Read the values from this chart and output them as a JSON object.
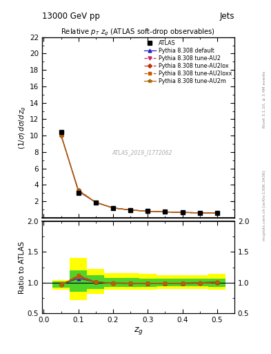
{
  "title_top": "13000 GeV pp",
  "title_right": "Jets",
  "plot_title": "Relative $p_{T}$ $z_g$ (ATLAS soft-drop observables)",
  "ylabel_main": "$(1/\\sigma)\\,d\\sigma/d\\,z_g$",
  "ylabel_ratio": "Ratio to ATLAS",
  "xlabel": "$z_g$",
  "watermark": "ATLAS_2019_I1772062",
  "right_label_top": "Rivet 3.1.10, ≥ 3.4M events",
  "right_label_bot": "mcplots.cern.ch [arXiv:1306.3436]",
  "zg_data": [
    0.05,
    0.1,
    0.15,
    0.2,
    0.25,
    0.3,
    0.35,
    0.4,
    0.45,
    0.5
  ],
  "main_data": [
    10.4,
    3.0,
    1.85,
    1.2,
    0.95,
    0.8,
    0.72,
    0.65,
    0.6,
    0.55
  ],
  "data_err_stat": [
    0.05,
    0.03,
    0.02,
    0.015,
    0.012,
    0.01,
    0.01,
    0.009,
    0.009,
    0.008
  ],
  "band_yellow_lo": [
    0.88,
    0.72,
    0.82,
    0.88,
    0.88,
    0.88,
    0.9,
    0.9,
    0.9,
    0.88
  ],
  "band_yellow_hi": [
    1.04,
    1.4,
    1.22,
    1.16,
    1.16,
    1.14,
    1.12,
    1.12,
    1.12,
    1.14
  ],
  "band_green_lo": [
    0.92,
    0.85,
    0.9,
    0.93,
    0.93,
    0.93,
    0.94,
    0.94,
    0.94,
    0.93
  ],
  "band_green_hi": [
    1.02,
    1.2,
    1.12,
    1.08,
    1.08,
    1.07,
    1.06,
    1.06,
    1.06,
    1.07
  ],
  "series": [
    {
      "label": "Pythia 8.308 default",
      "color": "#2222cc",
      "linestyle": "-",
      "marker": "^",
      "markersize": 3.5,
      "ratio": [
        0.97,
        1.07,
        1.01,
        0.995,
        0.99,
        0.99,
        0.99,
        0.99,
        1.0,
        1.01
      ]
    },
    {
      "label": "Pythia 8.308 tune-AU2",
      "color": "#cc2255",
      "linestyle": "--",
      "marker": "v",
      "markersize": 3.5,
      "ratio": [
        0.97,
        1.1,
        1.01,
        0.99,
        0.99,
        0.99,
        0.99,
        0.985,
        0.99,
        1.0
      ]
    },
    {
      "label": "Pythia 8.308 tune-AU2lox",
      "color": "#bb3311",
      "linestyle": "-.",
      "marker": "D",
      "markersize": 3,
      "ratio": [
        0.96,
        1.115,
        1.01,
        0.99,
        0.99,
        0.985,
        0.985,
        0.985,
        0.99,
        1.0
      ]
    },
    {
      "label": "Pythia 8.308 tune-AU2loxx",
      "color": "#cc5500",
      "linestyle": "--",
      "marker": "s",
      "markersize": 3,
      "ratio": [
        0.96,
        1.125,
        1.01,
        0.99,
        0.985,
        0.985,
        0.985,
        0.985,
        0.99,
        1.005
      ]
    },
    {
      "label": "Pythia 8.308 tune-AU2m",
      "color": "#aa6600",
      "linestyle": "-",
      "marker": "*",
      "markersize": 4,
      "ratio": [
        0.97,
        1.09,
        1.01,
        0.995,
        0.99,
        0.99,
        0.99,
        0.99,
        1.0,
        1.01
      ]
    }
  ],
  "ylim_main": [
    0,
    22
  ],
  "yticks_main": [
    2,
    4,
    6,
    8,
    10,
    12,
    14,
    16,
    18,
    20,
    22
  ],
  "ylim_ratio": [
    0.5,
    2.0
  ],
  "yticks_ratio": [
    0.5,
    1.0,
    1.5,
    2.0
  ],
  "xlim": [
    -0.005,
    0.55
  ],
  "xticks": [
    0.0,
    0.1,
    0.2,
    0.3,
    0.4,
    0.5
  ]
}
